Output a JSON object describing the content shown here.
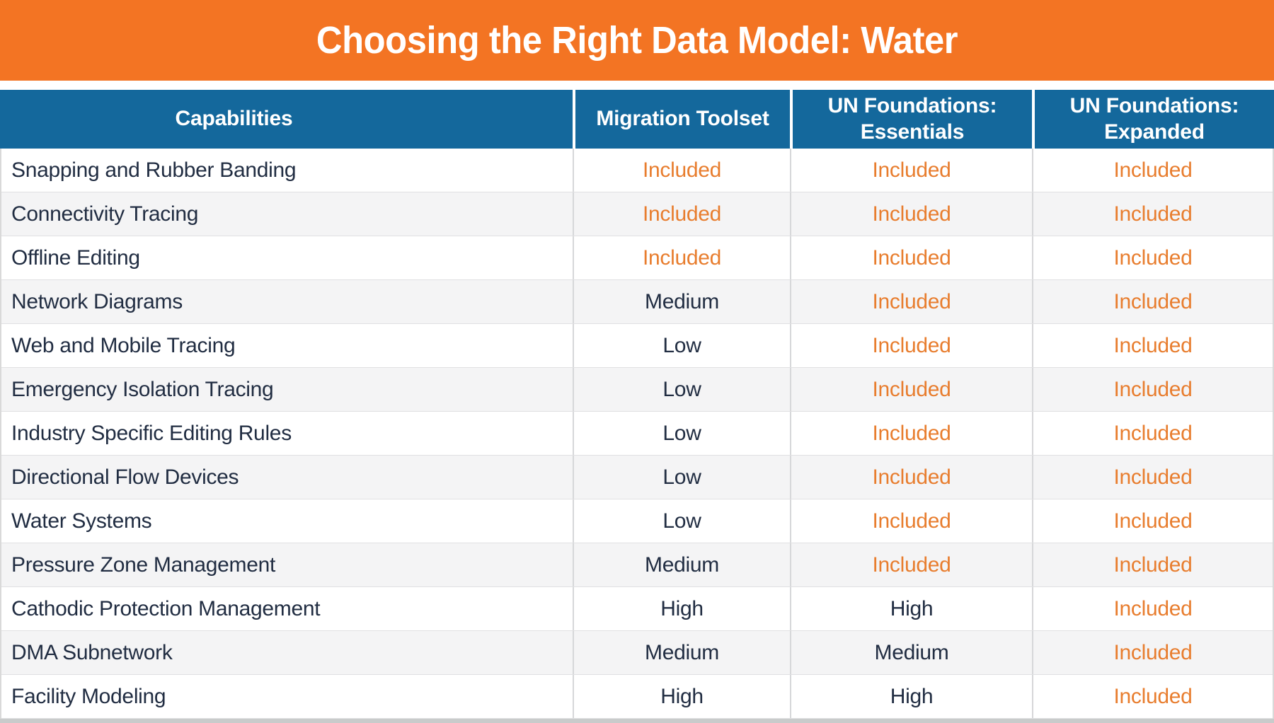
{
  "title": "Choosing the Right Data Model: Water",
  "colors": {
    "banner_orange": "#F37423",
    "header_blue": "#14689C",
    "included_orange": "#E87D2E",
    "dark_text": "#212D42",
    "alt_row_gray": "#F4F4F5",
    "bottom_border_gray": "#C9CBCB"
  },
  "table": {
    "columns": [
      "Capabilities",
      "Migration Toolset",
      "UN Foundations: Essentials",
      "UN Foundations: Expanded"
    ],
    "rows": [
      {
        "capability": "Snapping and Rubber Banding",
        "values": [
          "Included",
          "Included",
          "Included"
        ]
      },
      {
        "capability": "Connectivity Tracing",
        "values": [
          "Included",
          "Included",
          "Included"
        ]
      },
      {
        "capability": "Offline Editing",
        "values": [
          "Included",
          "Included",
          "Included"
        ]
      },
      {
        "capability": "Network Diagrams",
        "values": [
          "Medium",
          "Included",
          "Included"
        ]
      },
      {
        "capability": "Web and Mobile Tracing",
        "values": [
          "Low",
          "Included",
          "Included"
        ]
      },
      {
        "capability": "Emergency Isolation Tracing",
        "values": [
          "Low",
          "Included",
          "Included"
        ]
      },
      {
        "capability": "Industry Specific Editing Rules",
        "values": [
          "Low",
          "Included",
          "Included"
        ]
      },
      {
        "capability": "Directional Flow Devices",
        "values": [
          "Low",
          "Included",
          "Included"
        ]
      },
      {
        "capability": "Water Systems",
        "values": [
          "Low",
          "Included",
          "Included"
        ]
      },
      {
        "capability": "Pressure Zone Management",
        "values": [
          "Medium",
          "Included",
          "Included"
        ]
      },
      {
        "capability": "Cathodic Protection Management",
        "values": [
          "High",
          "High",
          "Included"
        ]
      },
      {
        "capability": "DMA Subnetwork",
        "values": [
          "Medium",
          "Medium",
          "Included"
        ]
      },
      {
        "capability": "Facility Modeling",
        "values": [
          "High",
          "High",
          "Included"
        ]
      }
    ]
  }
}
